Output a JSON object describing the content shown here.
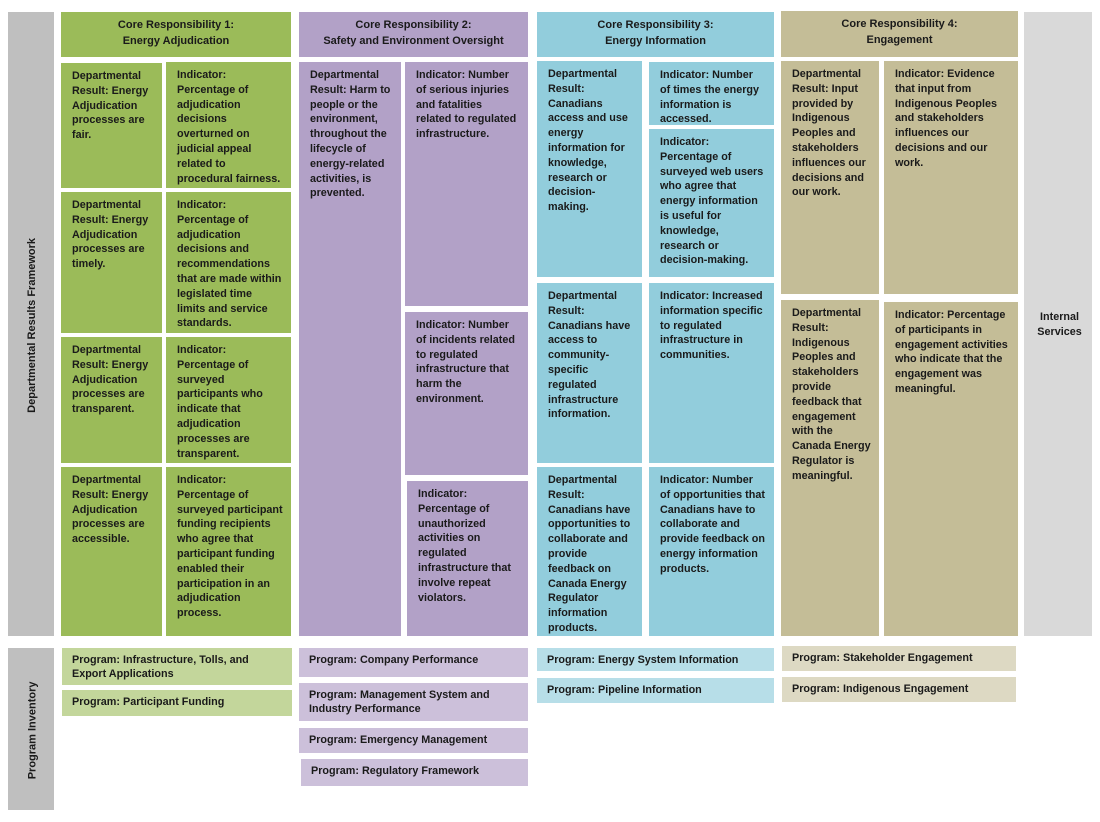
{
  "side_labels": {
    "framework": "Departmental Results Framework",
    "inventory": "Program Inventory"
  },
  "internal_services": "Internal Services",
  "cr": [
    {
      "title1": "Core Responsibility 1:",
      "title2": "Energy Adjudication",
      "results": [
        "Departmental Result: Energy Adjudication processes are fair.",
        "Departmental Result: Energy Adjudication processes are timely.",
        "Departmental Result: Energy Adjudication processes are transparent.",
        "Departmental Result: Energy Adjudication processes are accessible."
      ],
      "indicators": [
        "Indicator: Percentage of adjudication decisions overturned on judicial appeal related to procedural fairness.",
        "Indicator: Percentage of adjudication decisions and recommendations that are made within legislated time limits and service standards.",
        "Indicator: Percentage of surveyed participants who indicate that adjudication processes are transparent.",
        "Indicator: Percentage of surveyed participant funding recipients who agree that participant funding enabled their participation in an adjudication process."
      ],
      "programs": [
        "Program:  Infrastructure, Tolls, and Export Applications",
        "Program:  Participant Funding"
      ]
    },
    {
      "title1": "Core Responsibility 2:",
      "title2": "Safety and Environment Oversight",
      "results": [
        "Departmental Result: Harm to people or the environment, throughout the lifecycle of energy-related activities, is prevented."
      ],
      "indicators": [
        "Indicator: Number of serious injuries and fatalities related to regulated infrastructure.",
        "Indicator: Number of incidents related to regulated infrastructure that harm the environment.",
        "Indicator: Percentage of unauthorized activities on regulated infrastructure that involve repeat violators."
      ],
      "programs": [
        "Program:  Company Performance",
        "Program:  Management System and Industry Performance",
        "Program:  Emergency Management",
        "Program:  Regulatory Framework"
      ]
    },
    {
      "title1": "Core Responsibility 3:",
      "title2": "Energy Information",
      "results": [
        "Departmental Result: Canadians access and use energy information for knowledge, research or decision-making.",
        "Departmental Result: Canadians have access to community-specific regulated infrastructure information.",
        "Departmental Result: Canadians have opportunities to collaborate and provide feedback on Canada Energy Regulator information products."
      ],
      "indicators": [
        "Indicator: Number of times the energy information is accessed.",
        "Indicator: Percentage of surveyed web users who agree that energy information is useful for knowledge, research or decision-making.",
        "Indicator: Increased information specific to regulated infrastructure in communities.",
        "Indicator: Number of opportunities that Canadians have to collaborate and provide feedback on energy information products."
      ],
      "programs": [
        "Program:  Energy System Information",
        "Program:  Pipeline Information"
      ]
    },
    {
      "title1": "Core Responsibility 4:",
      "title2": "Engagement",
      "results": [
        "Departmental Result: Input provided by Indigenous Peoples and stakeholders influences our decisions and our work.",
        "Departmental Result: Indigenous Peoples and stakeholders provide feedback that engagement with the Canada Energy Regulator is meaningful."
      ],
      "indicators": [
        "Indicator: Evidence that input from Indigenous Peoples and stakeholders influences our decisions and our work.",
        "Indicator: Percentage of participants in engagement activities who indicate that the engagement was meaningful."
      ],
      "programs": [
        "Program:  Stakeholder Engagement",
        "Program:  Indigenous Engagement"
      ]
    }
  ],
  "colors": {
    "cr1": "#9bbb59",
    "cr2": "#b2a1c7",
    "cr3": "#92cddc",
    "cr4": "#c4bd97",
    "side": "#bfbfbf",
    "internal": "#d9d9d9"
  }
}
